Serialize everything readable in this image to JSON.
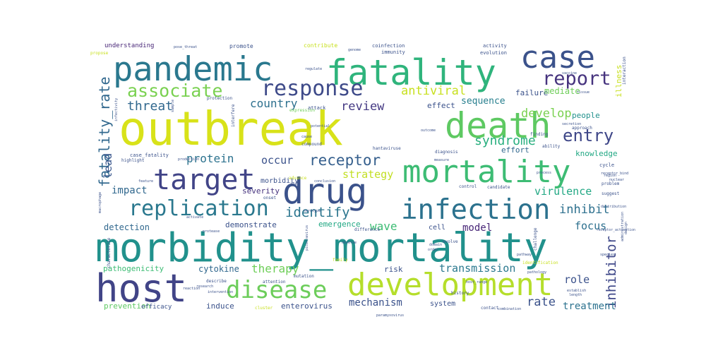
{
  "word_cloud": {
    "words": [
      {
        "text": "outbreak",
        "color": "#d8e219"
      },
      {
        "text": "morbidity_mortality",
        "color": "#21918c"
      },
      {
        "text": "pandemic",
        "color": "#2a788e"
      },
      {
        "text": "fatality",
        "color": "#2fb47c"
      },
      {
        "text": "case",
        "color": "#3b528b"
      },
      {
        "text": "death",
        "color": "#5ec962"
      },
      {
        "text": "host",
        "color": "#414487"
      },
      {
        "text": "development",
        "color": "#b5de2b"
      },
      {
        "text": "mortality",
        "color": "#3dbc74"
      },
      {
        "text": "drug",
        "color": "#3b528b"
      },
      {
        "text": "infection",
        "color": "#2c728e"
      },
      {
        "text": "target",
        "color": "#414487"
      },
      {
        "text": "disease",
        "color": "#6ccd5a"
      },
      {
        "text": "replication",
        "color": "#2a788e"
      },
      {
        "text": "response",
        "color": "#3e4a89"
      },
      {
        "text": "associate",
        "color": "#7ad151"
      },
      {
        "text": "report",
        "color": "#46337e"
      },
      {
        "text": "entry",
        "color": "#3f4788"
      },
      {
        "text": "fatality_rate",
        "color": "#31688e"
      },
      {
        "text": "receptor",
        "color": "#355f8d"
      },
      {
        "text": "antiviral",
        "color": "#c8e020"
      },
      {
        "text": "syndrome",
        "color": "#29af7f"
      },
      {
        "text": "identify",
        "color": "#2b758e"
      },
      {
        "text": "inhibit",
        "color": "#2d708e"
      },
      {
        "text": "inhibitor",
        "color": "#3f4889"
      },
      {
        "text": "threat",
        "color": "#31688e"
      },
      {
        "text": "review",
        "color": "#443983"
      },
      {
        "text": "country",
        "color": "#2d708e"
      },
      {
        "text": "develop",
        "color": "#7ad151"
      },
      {
        "text": "protein",
        "color": "#2c728e"
      },
      {
        "text": "occur",
        "color": "#3b528b"
      },
      {
        "text": "lead",
        "color": "#39568c"
      },
      {
        "text": "strategy",
        "color": "#c2df23"
      },
      {
        "text": "virulence",
        "color": "#22a884"
      },
      {
        "text": "impact",
        "color": "#31688e"
      },
      {
        "text": "wave",
        "color": "#3dbc74"
      },
      {
        "text": "therapy",
        "color": "#6ece58"
      },
      {
        "text": "transmission",
        "color": "#2a788e"
      },
      {
        "text": "rate",
        "color": "#3b528b"
      },
      {
        "text": "treatment",
        "color": "#2c728e"
      },
      {
        "text": "mechanism",
        "color": "#3b528b"
      },
      {
        "text": "model",
        "color": "#482677"
      },
      {
        "text": "focus",
        "color": "#2d708e"
      },
      {
        "text": "role",
        "color": "#3b528b"
      },
      {
        "text": "sequence",
        "color": "#277f8e"
      },
      {
        "text": "failure",
        "color": "#3b528b"
      },
      {
        "text": "effect",
        "color": "#3b528b"
      },
      {
        "text": "mediate",
        "color": "#6ece58"
      },
      {
        "text": "illness",
        "color": "#c8e020"
      },
      {
        "text": "people",
        "color": "#21918c"
      },
      {
        "text": "knowledge",
        "color": "#22a884"
      },
      {
        "text": "effort",
        "color": "#31688e"
      },
      {
        "text": "detection",
        "color": "#31688e"
      },
      {
        "text": "emergence",
        "color": "#22a884"
      },
      {
        "text": "demonstrate",
        "color": "#3b528b"
      },
      {
        "text": "cytokine",
        "color": "#31688e"
      },
      {
        "text": "severity",
        "color": "#46337e"
      },
      {
        "text": "morbidity",
        "color": "#3b528b"
      },
      {
        "text": "pathogenicity",
        "color": "#3dbc74"
      },
      {
        "text": "prevention",
        "color": "#5ec962"
      },
      {
        "text": "induce",
        "color": "#3b528b"
      },
      {
        "text": "enterovirus",
        "color": "#3b528b"
      },
      {
        "text": "system",
        "color": "#3b528b"
      },
      {
        "text": "risk",
        "color": "#3b528b"
      },
      {
        "text": "cell",
        "color": "#3b528b"
      },
      {
        "text": "efficacy",
        "color": "#3b528b"
      },
      {
        "text": "understanding",
        "color": "#482677"
      },
      {
        "text": "promote",
        "color": "#3b528b"
      },
      {
        "text": "contribute",
        "color": "#c8e020"
      },
      {
        "text": "coinfection",
        "color": "#3b528b"
      },
      {
        "text": "activity",
        "color": "#3b528b"
      },
      {
        "text": "evolution",
        "color": "#3b528b"
      },
      {
        "text": "immunity",
        "color": "#3b528b"
      },
      {
        "text": "interaction",
        "color": "#3b528b"
      },
      {
        "text": "expression",
        "color": "#6ece58"
      },
      {
        "text": "attack",
        "color": "#3b528b"
      },
      {
        "text": "interfere",
        "color": "#3b528b"
      },
      {
        "text": "protection",
        "color": "#3b528b"
      },
      {
        "text": "diagnosis",
        "color": "#3b528b"
      },
      {
        "text": "ability",
        "color": "#3b528b"
      },
      {
        "text": "finding",
        "color": "#3b528b"
      },
      {
        "text": "approach",
        "color": "#3b528b"
      },
      {
        "text": "hantaviruse",
        "color": "#3b528b"
      },
      {
        "text": "compound",
        "color": "#3b528b"
      },
      {
        "text": "case_fatality",
        "color": "#3b528b"
      },
      {
        "text": "highlight",
        "color": "#3b528b"
      },
      {
        "text": "advance",
        "color": "#c8e020"
      },
      {
        "text": "control",
        "color": "#3b528b"
      },
      {
        "text": "candidate",
        "color": "#3b528b"
      },
      {
        "text": "cycle",
        "color": "#3b528b"
      },
      {
        "text": "problem",
        "color": "#3b528b"
      },
      {
        "text": "suggest",
        "color": "#3b528b"
      },
      {
        "text": "onset",
        "color": "#3b528b"
      },
      {
        "text": "difference",
        "color": "#3b528b"
      },
      {
        "text": "evolve",
        "color": "#3b528b"
      },
      {
        "text": "challenge",
        "color": "#3b528b"
      },
      {
        "text": "characterize",
        "color": "#3b528b"
      },
      {
        "text": "activate",
        "color": "#3b528b"
      },
      {
        "text": "protease",
        "color": "#3b528b"
      },
      {
        "text": "picornavirus",
        "color": "#3b528b"
      },
      {
        "text": "observe",
        "color": "#3b528b"
      },
      {
        "text": "identification",
        "color": "#c8e020"
      },
      {
        "text": "family",
        "color": "#c8e020"
      },
      {
        "text": "describe",
        "color": "#3b528b"
      },
      {
        "text": "attention",
        "color": "#3b528b"
      },
      {
        "text": "mutation",
        "color": "#3b528b"
      },
      {
        "text": "history",
        "color": "#3b528b"
      },
      {
        "text": "cluster",
        "color": "#c8e020"
      },
      {
        "text": "contact",
        "color": "#3b528b"
      },
      {
        "text": "combination",
        "color": "#3b528b"
      },
      {
        "text": "establish",
        "color": "#3b528b"
      },
      {
        "text": "research",
        "color": "#3b528b"
      },
      {
        "text": "regulate",
        "color": "#3b528b"
      },
      {
        "text": "infectivity",
        "color": "#3b528b"
      },
      {
        "text": "measure",
        "color": "#3b528b"
      },
      {
        "text": "reaction",
        "color": "#3b528b"
      },
      {
        "text": "pose_threat",
        "color": "#3b528b"
      },
      {
        "text": "propose",
        "color": "#c8e020"
      },
      {
        "text": "sample",
        "color": "#3b528b"
      },
      {
        "text": "secretion",
        "color": "#3b528b"
      },
      {
        "text": "genome",
        "color": "#3b528b"
      },
      {
        "text": "tissue",
        "color": "#3b528b"
      },
      {
        "text": "pathology",
        "color": "#3b528b"
      },
      {
        "text": "paramyxovirus",
        "color": "#3b528b"
      },
      {
        "text": "macrophage",
        "color": "#3b528b"
      },
      {
        "text": "intervention",
        "color": "#3b528b"
      },
      {
        "text": "production",
        "color": "#3b528b"
      },
      {
        "text": "feature",
        "color": "#3b528b"
      },
      {
        "text": "conclusion",
        "color": "#3b528b"
      },
      {
        "text": "domain",
        "color": "#3b528b"
      },
      {
        "text": "order",
        "color": "#3b528b"
      },
      {
        "text": "kill",
        "color": "#3b528b"
      },
      {
        "text": "length",
        "color": "#3b528b"
      },
      {
        "text": "region",
        "color": "#3b528b"
      },
      {
        "text": "nuclear",
        "color": "#3b528b"
      },
      {
        "text": "distribution",
        "color": "#3b528b"
      },
      {
        "text": "receptor_bind",
        "color": "#3b528b"
      },
      {
        "text": "administration",
        "color": "#3b528b"
      },
      {
        "text": "design",
        "color": "#3b528b"
      },
      {
        "text": "potential",
        "color": "#3b528b"
      },
      {
        "text": "cause",
        "color": "#3b528b"
      },
      {
        "text": "outcome",
        "color": "#3b528b"
      },
      {
        "text": "vaccine",
        "color": "#3b528b"
      },
      {
        "text": "process",
        "color": "#3b528b"
      },
      {
        "text": "receptor_activation",
        "color": "#3b528b"
      },
      {
        "text": "serotype",
        "color": "#3b528b"
      },
      {
        "text": "host_range",
        "color": "#3b528b"
      },
      {
        "text": "pathway",
        "color": "#3b528b"
      },
      {
        "text": "species",
        "color": "#3b528b"
      }
    ]
  }
}
